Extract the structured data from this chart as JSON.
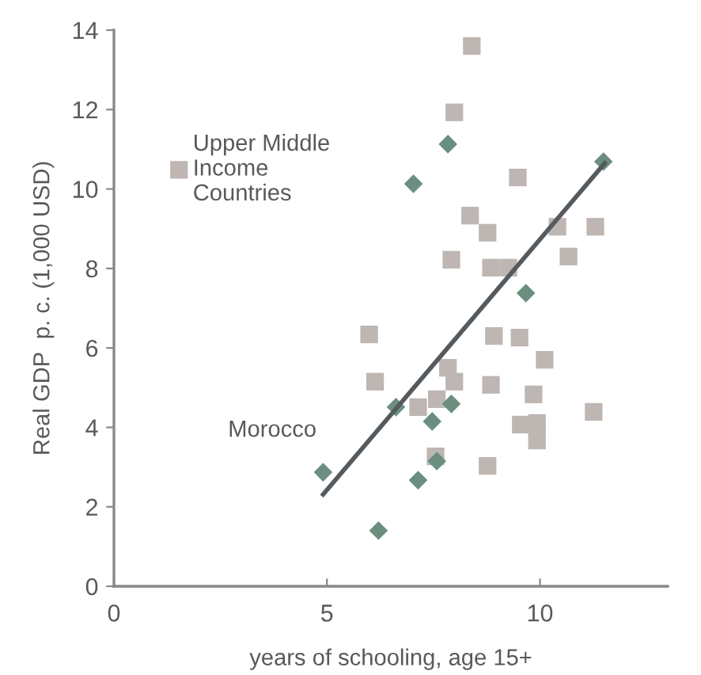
{
  "chart_data": {
    "type": "scatter",
    "xlabel": "years of schooling, age 15+",
    "ylabel": "Real GDP  p. c. (1,000 USD)",
    "xlim": [
      0,
      13
    ],
    "xticks": [
      0,
      5,
      10
    ],
    "ylim": [
      0,
      14
    ],
    "yticks": [
      0,
      2,
      4,
      6,
      8,
      10,
      12,
      14
    ],
    "grid": false,
    "legend": "top left",
    "annotations": [
      {
        "text": "Morocco",
        "x": 4.91,
        "y": 2.87
      }
    ],
    "series": [
      {
        "name": "Upper Middle\nIncome\nCountries",
        "color": "#bdb6b2",
        "marker": "square",
        "x": [
          8.4,
          7.99,
          9.48,
          8.36,
          8.77,
          7.92,
          8.85,
          9.26,
          10.41,
          11.3,
          10.67,
          5.99,
          6.13,
          8.85,
          8.92,
          9.52,
          10.11,
          7.84,
          7.99,
          8.85,
          9.85,
          7.58,
          7.14,
          9.55,
          9.93,
          9.93,
          11.26,
          7.55,
          8.77
        ],
        "values": [
          13.6,
          11.93,
          10.29,
          9.33,
          8.9,
          8.22,
          8.02,
          8.02,
          9.05,
          9.05,
          8.3,
          6.34,
          5.15,
          null,
          6.3,
          6.26,
          5.7,
          5.5,
          5.15,
          5.07,
          4.83,
          4.71,
          4.51,
          4.07,
          4.11,
          3.67,
          4.39,
          3.27,
          3.03
        ]
      },
      {
        "color": "#6b8e7f",
        "marker": "diamond",
        "x": [
          7.84,
          7.03,
          11.49,
          9.67,
          6.62,
          7.92,
          7.47,
          7.58,
          7.14,
          4.91,
          6.21
        ],
        "values": [
          11.13,
          10.13,
          10.69,
          7.38,
          4.51,
          4.59,
          4.15,
          3.15,
          2.67,
          2.87,
          1.4
        ]
      },
      {
        "type": "line",
        "color": "#555a5f",
        "marker": "none",
        "line_style": "solid",
        "x": [
          4.91,
          11.52
        ],
        "values": [
          2.31,
          10.65
        ]
      }
    ]
  }
}
